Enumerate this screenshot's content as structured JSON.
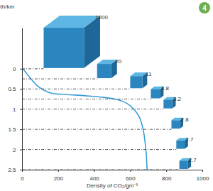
{
  "chart_data": {
    "type": "line",
    "x_label": "Density of CO₂/gm⁻³",
    "y_label": "Depth/km",
    "x": [
      5,
      40,
      80,
      120,
      165,
      250,
      350,
      450,
      530,
      580,
      620,
      650,
      670,
      685,
      692
    ],
    "values": [
      0,
      0.2,
      0.4,
      0.52,
      0.6,
      0.63,
      0.66,
      0.7,
      0.76,
      0.85,
      1.0,
      1.2,
      1.5,
      2.0,
      2.5
    ],
    "color": "#3a9fd8",
    "xlim": [
      0,
      1000
    ],
    "xticks": [
      0,
      200,
      400,
      600,
      800,
      1000
    ],
    "ylim": [
      -1,
      2.5
    ],
    "yticks": [
      0,
      0.5,
      1,
      1.5,
      2,
      2.5
    ],
    "cubes": [
      {
        "depth": 0,
        "volume": 1000
      },
      {
        "depth": 0.25,
        "volume": 20
      },
      {
        "depth": 0.5,
        "volume": 11
      },
      {
        "depth": 0.75,
        "volume": 3.8
      },
      {
        "depth": 1,
        "volume": 3.2
      },
      {
        "depth": 1.5,
        "volume": 2.8
      },
      {
        "depth": 2,
        "volume": 2.7
      },
      {
        "depth": 2.5,
        "volume": 2.7
      }
    ],
    "figure_number": "4"
  }
}
